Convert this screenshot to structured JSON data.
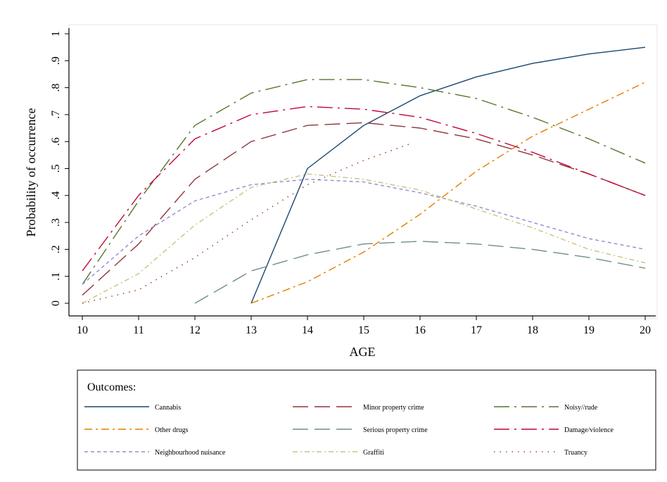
{
  "chart_data": {
    "type": "line",
    "xlabel": "AGE",
    "ylabel": "Probability of occurrence",
    "xlim": [
      10,
      20
    ],
    "ylim": [
      0,
      1
    ],
    "xticks": [
      "10",
      "11",
      "12",
      "13",
      "14",
      "15",
      "16",
      "17",
      "18",
      "19",
      "20"
    ],
    "yticks": [
      "0",
      ".1",
      ".2",
      ".3",
      ".4",
      ".5",
      ".6",
      ".7",
      ".8",
      ".9",
      "1"
    ],
    "grid": false,
    "legend_title": "Outcomes:",
    "legend_position": "bottom",
    "series": [
      {
        "name": "Cannabis",
        "color": "#1a476f",
        "dash": "solid",
        "x": [
          13,
          14,
          15,
          16,
          17,
          18,
          19,
          20
        ],
        "y": [
          0.0,
          0.5,
          0.66,
          0.77,
          0.84,
          0.89,
          0.925,
          0.95
        ]
      },
      {
        "name": "Minor property crime",
        "color": "#90353b",
        "dash": "longdash",
        "x": [
          10,
          11,
          12,
          13,
          14,
          15,
          16,
          17,
          18,
          19,
          20
        ],
        "y": [
          0.03,
          0.22,
          0.46,
          0.6,
          0.66,
          0.67,
          0.65,
          0.61,
          0.55,
          0.48,
          0.4
        ]
      },
      {
        "name": "Noisy//rude",
        "color": "#55752f",
        "dash": "longdashdot",
        "x": [
          10,
          11,
          12,
          13,
          14,
          15,
          16,
          17,
          18,
          19,
          20
        ],
        "y": [
          0.07,
          0.38,
          0.66,
          0.78,
          0.83,
          0.83,
          0.8,
          0.76,
          0.69,
          0.61,
          0.52
        ]
      },
      {
        "name": "Other drugs",
        "color": "#e37e00",
        "dash": "dashdot",
        "x": [
          13,
          14,
          15,
          16,
          17,
          18,
          19,
          20
        ],
        "y": [
          0.0,
          0.08,
          0.19,
          0.33,
          0.49,
          0.62,
          0.72,
          0.82
        ]
      },
      {
        "name": "Serious property crime",
        "color": "#6e8e84",
        "dash": "longdash",
        "x": [
          12,
          13,
          14,
          15,
          16,
          17,
          18,
          19,
          20
        ],
        "y": [
          0.0,
          0.12,
          0.18,
          0.22,
          0.23,
          0.22,
          0.2,
          0.17,
          0.13
        ]
      },
      {
        "name": "Damage/violence",
        "color": "#c10534",
        "dash": "longdashdot",
        "x": [
          10,
          11,
          12,
          13,
          14,
          15,
          16,
          17,
          18,
          19,
          20
        ],
        "y": [
          0.12,
          0.4,
          0.61,
          0.7,
          0.73,
          0.72,
          0.69,
          0.63,
          0.56,
          0.48,
          0.4
        ]
      },
      {
        "name": "Neighbourhood nuisance",
        "color": "#938dd2",
        "dash": "shortdash",
        "x": [
          10,
          11,
          12,
          13,
          14,
          15,
          16,
          17,
          18,
          19,
          20
        ],
        "y": [
          0.07,
          0.25,
          0.38,
          0.44,
          0.46,
          0.45,
          0.41,
          0.36,
          0.3,
          0.24,
          0.2
        ]
      },
      {
        "name": "Graffiti",
        "color": "#cac27e",
        "dash": "shortdashdot",
        "x": [
          10,
          11,
          12,
          13,
          14,
          15,
          16,
          17,
          18,
          19,
          20
        ],
        "y": [
          0.0,
          0.11,
          0.29,
          0.43,
          0.48,
          0.46,
          0.42,
          0.35,
          0.28,
          0.2,
          0.15
        ]
      },
      {
        "name": "Truancy",
        "color": "#a0522d",
        "dash": "dot",
        "x": [
          10,
          11,
          12,
          13,
          14,
          15,
          15.8
        ],
        "y": [
          0.0,
          0.05,
          0.17,
          0.31,
          0.44,
          0.53,
          0.59
        ]
      }
    ]
  }
}
